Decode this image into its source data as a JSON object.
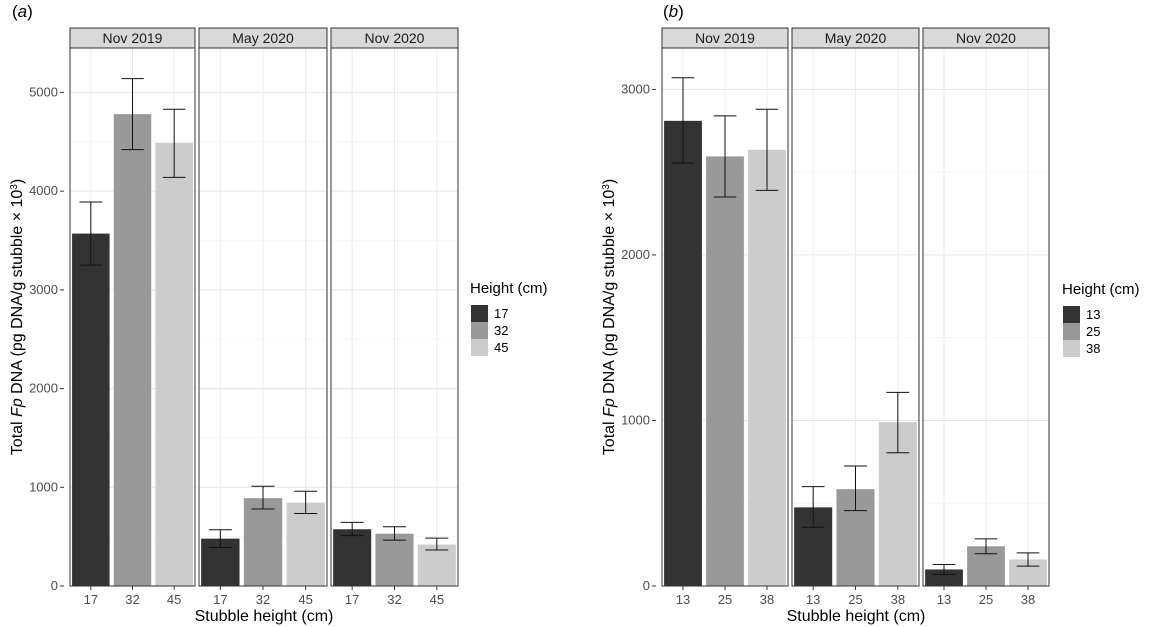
{
  "chart_data": [
    {
      "panel_label_open": "(",
      "panel_label_letter": "a",
      "panel_label_close": ")",
      "type": "bar",
      "facets": [
        "Nov 2019",
        "May 2020",
        "Nov 2020"
      ],
      "categories": [
        "17",
        "32",
        "45"
      ],
      "series": [
        {
          "facet": "Nov 2019",
          "values": [
            3570,
            4780,
            4490
          ],
          "error_low": [
            3250,
            4420,
            4140
          ],
          "error_high": [
            3890,
            5140,
            4830
          ]
        },
        {
          "facet": "May 2020",
          "values": [
            480,
            890,
            845
          ],
          "error_low": [
            390,
            780,
            735
          ],
          "error_high": [
            570,
            1010,
            960
          ]
        },
        {
          "facet": "Nov 2020",
          "values": [
            575,
            530,
            420
          ],
          "error_low": [
            510,
            465,
            365
          ],
          "error_high": [
            645,
            600,
            485
          ]
        }
      ],
      "xlabel": "Stubble height (cm)",
      "ylabel_pre": "Total ",
      "ylabel_italic": "Fp",
      "ylabel_post": " DNA (pg DNA/g stubble × 10",
      "ylabel_sup": "3",
      "ylabel_end": ")",
      "yticks": [
        0,
        1000,
        2000,
        3000,
        4000,
        5000
      ],
      "ylim": [
        0,
        5450
      ],
      "legend_title": "Height (cm)",
      "legend_entries": [
        "17",
        "32",
        "45"
      ],
      "colors": [
        "#333333",
        "#999999",
        "#cccccc"
      ],
      "grid": true,
      "legend_position": "right"
    },
    {
      "panel_label_open": "(",
      "panel_label_letter": "b",
      "panel_label_close": ")",
      "type": "bar",
      "facets": [
        "Nov 2019",
        "May 2020",
        "Nov 2020"
      ],
      "categories": [
        "13",
        "25",
        "38"
      ],
      "series": [
        {
          "facet": "Nov 2019",
          "values": [
            2810,
            2595,
            2635
          ],
          "error_low": [
            2555,
            2350,
            2390
          ],
          "error_high": [
            3070,
            2840,
            2880
          ]
        },
        {
          "facet": "May 2020",
          "values": [
            475,
            585,
            990
          ],
          "error_low": [
            355,
            455,
            805
          ],
          "error_high": [
            600,
            725,
            1170
          ]
        },
        {
          "facet": "Nov 2020",
          "values": [
            100,
            240,
            160
          ],
          "error_low": [
            70,
            195,
            120
          ],
          "error_high": [
            130,
            285,
            200
          ]
        }
      ],
      "xlabel": "Stubble height (cm)",
      "ylabel_pre": "Total ",
      "ylabel_italic": "Fp",
      "ylabel_post": " DNA (pg DNA/g stubble × 10",
      "ylabel_sup": "3",
      "ylabel_end": ")",
      "yticks": [
        0,
        1000,
        2000,
        3000
      ],
      "ylim": [
        0,
        3250
      ],
      "legend_title": "Height (cm)",
      "legend_entries": [
        "13",
        "25",
        "38"
      ],
      "colors": [
        "#333333",
        "#999999",
        "#cccccc"
      ],
      "grid": true,
      "legend_position": "right"
    }
  ]
}
